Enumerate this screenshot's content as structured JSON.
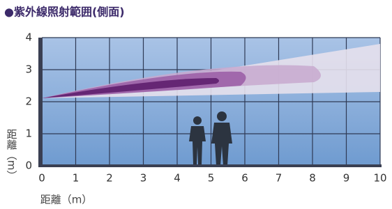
{
  "chart_data": {
    "type": "area",
    "title": "●紫外線照射範囲(側面)",
    "x_label": "距離（m）",
    "y_label": "距離（m）",
    "xlim": [
      0,
      10
    ],
    "ylim": [
      0,
      4
    ],
    "xticks": [
      0,
      1,
      2,
      3,
      4,
      5,
      6,
      7,
      8,
      9,
      10
    ],
    "yticks": [
      0,
      1,
      2,
      3,
      4
    ],
    "grid": true
  }
}
